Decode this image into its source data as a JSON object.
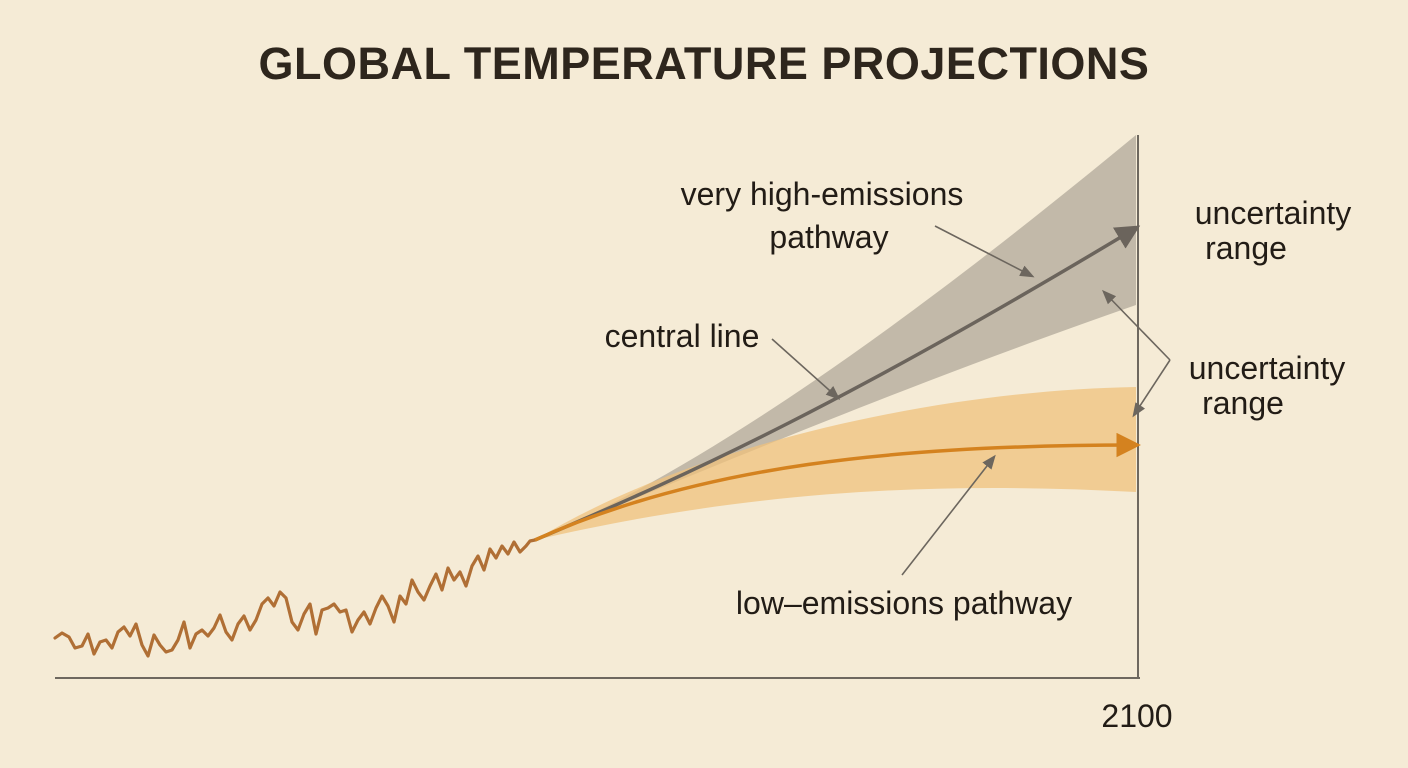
{
  "chart_data": {
    "type": "line",
    "title": "GLOBAL TEMPERATURE PROJECTIONS",
    "x_tick_labels": [
      "2100"
    ],
    "series": [
      {
        "name": "very high-emissions pathway",
        "color": "#6b645c",
        "band_color": "#b8b0a1"
      },
      {
        "name": "low–emissions pathway",
        "color": "#d4821f",
        "band_color": "#efc27c"
      }
    ],
    "historical": {
      "color": "#b06f35"
    },
    "annotations": {
      "high_pathway": [
        "very high-emissions",
        "pathway"
      ],
      "central_line": "central line",
      "uncertainty_top": [
        "uncertainty",
        "range"
      ],
      "uncertainty_mid": [
        "uncertainty",
        "range"
      ],
      "low_pathway": "low–emissions pathway"
    },
    "axis_color": "#6e685f"
  }
}
